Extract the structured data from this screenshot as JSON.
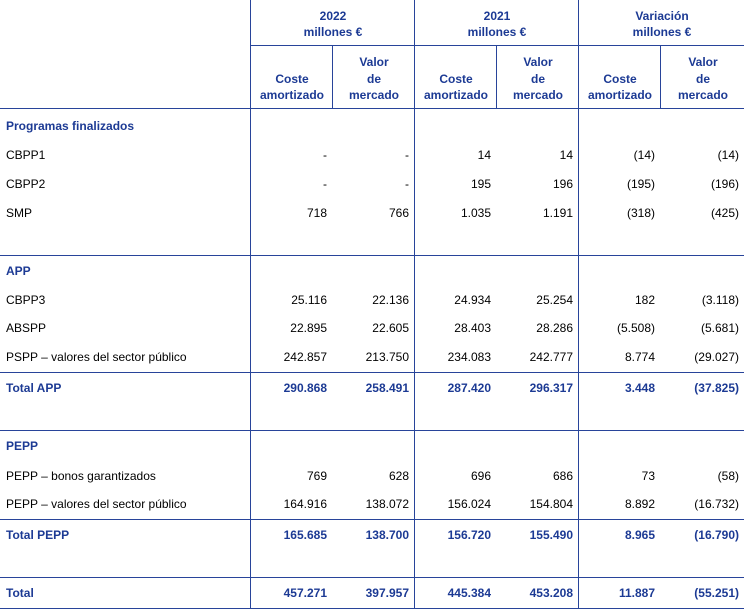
{
  "header": {
    "groups": [
      {
        "year": "2022",
        "unit": "millones €"
      },
      {
        "year": "2021",
        "unit": "millones €"
      },
      {
        "year": "Variación",
        "unit": "millones €"
      }
    ],
    "subheaders": [
      [
        "Coste",
        "amortizado"
      ],
      [
        "Valor",
        "de",
        "mercado"
      ],
      [
        "Coste",
        "amortizado"
      ],
      [
        "Valor",
        "de",
        "mercado"
      ],
      [
        "Coste",
        "amortizado"
      ],
      [
        "Valor",
        "de",
        "mercado"
      ]
    ]
  },
  "sections": [
    {
      "title": "Programas finalizados",
      "rows": [
        {
          "label": "CBPP1",
          "values": [
            "-",
            "-",
            "14",
            "14",
            "(14)",
            "(14)"
          ]
        },
        {
          "label": "CBPP2",
          "values": [
            "-",
            "-",
            "195",
            "196",
            "(195)",
            "(196)"
          ]
        },
        {
          "label": "SMP",
          "values": [
            "718",
            "766",
            "1.035",
            "1.191",
            "(318)",
            "(425)"
          ]
        }
      ]
    },
    {
      "title": "APP",
      "rows": [
        {
          "label": "CBPP3",
          "values": [
            "25.116",
            "22.136",
            "24.934",
            "25.254",
            "182",
            "(3.118)"
          ]
        },
        {
          "label": "ABSPP",
          "values": [
            "22.895",
            "22.605",
            "28.403",
            "28.286",
            "(5.508)",
            "(5.681)"
          ]
        },
        {
          "label": "PSPP – valores del sector público",
          "values": [
            "242.857",
            "213.750",
            "234.083",
            "242.777",
            "8.774",
            "(29.027)"
          ]
        }
      ],
      "total": {
        "label": "Total APP",
        "values": [
          "290.868",
          "258.491",
          "287.420",
          "296.317",
          "3.448",
          "(37.825)"
        ]
      }
    },
    {
      "title": "PEPP",
      "rows": [
        {
          "label": "PEPP – bonos garantizados",
          "values": [
            "769",
            "628",
            "696",
            "686",
            "73",
            "(58)"
          ]
        },
        {
          "label": "PEPP – valores del sector público",
          "values": [
            "164.916",
            "138.072",
            "156.024",
            "154.804",
            "8.892",
            "(16.732)"
          ]
        }
      ],
      "total": {
        "label": "Total PEPP",
        "values": [
          "165.685",
          "138.700",
          "156.720",
          "155.490",
          "8.965",
          "(16.790)"
        ]
      }
    }
  ],
  "total": {
    "label": "Total",
    "values": [
      "457.271",
      "397.957",
      "445.384",
      "453.208",
      "11.887",
      "(55.251)"
    ]
  }
}
